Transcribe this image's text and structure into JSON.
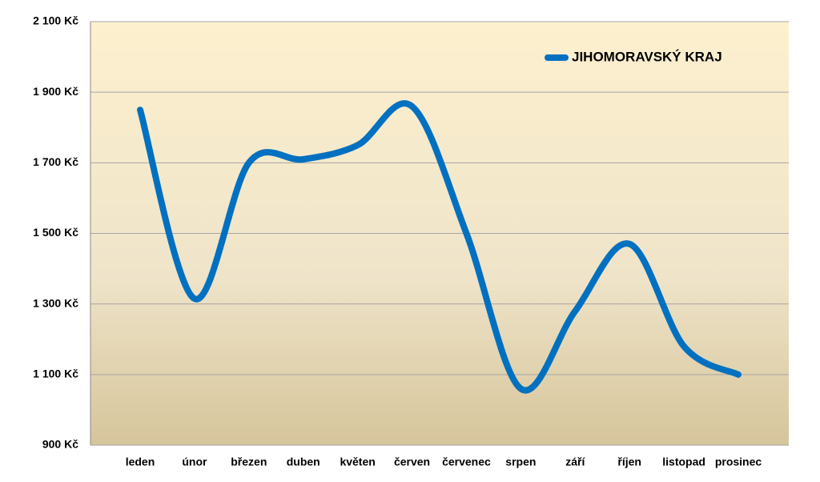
{
  "chart_data": {
    "type": "line",
    "categories": [
      "leden",
      "únor",
      "březen",
      "duben",
      "květen",
      "červen",
      "červenec",
      "srpen",
      "září",
      "říjen",
      "listopad",
      "prosinec"
    ],
    "series": [
      {
        "name": "JIHOMORAVSKÝ KRAJ",
        "color": "#0070c0",
        "values": [
          1850,
          1315,
          1700,
          1710,
          1750,
          1860,
          1500,
          1060,
          1280,
          1470,
          1180,
          1100
        ]
      }
    ],
    "ylim": [
      900,
      2100
    ],
    "yticks": [
      {
        "value": 900,
        "label": "900 Kč"
      },
      {
        "value": 1100,
        "label": "1 100 Kč"
      },
      {
        "value": 1300,
        "label": "1 300 Kč"
      },
      {
        "value": 1500,
        "label": "1 500 Kč"
      },
      {
        "value": 1700,
        "label": "1 700 Kč"
      },
      {
        "value": 1900,
        "label": "1 900 Kč"
      },
      {
        "value": 2100,
        "label": "2 100 Kč"
      }
    ],
    "grid": true,
    "legend": "top-right"
  }
}
